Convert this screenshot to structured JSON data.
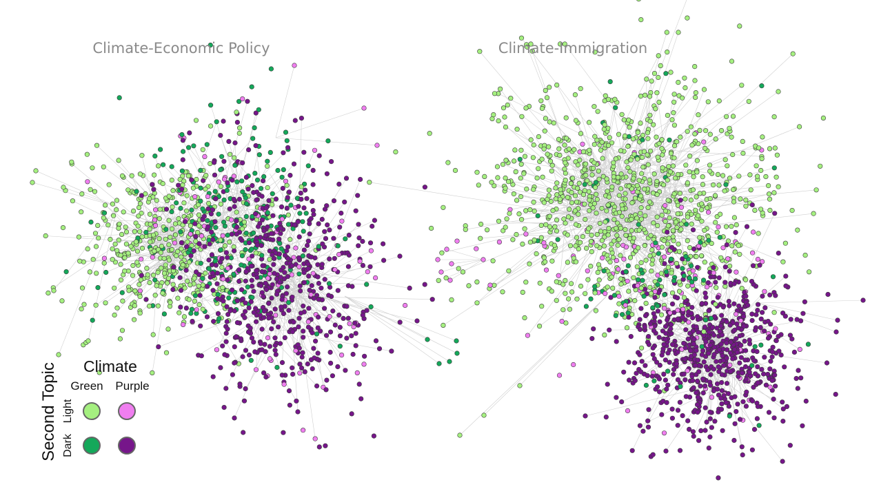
{
  "panels": [
    {
      "id": "economic",
      "title": "Climate-Economic Policy"
    },
    {
      "id": "immigration",
      "title": "Climate-Immigration"
    }
  ],
  "legend": {
    "column_title": "Climate",
    "columns": [
      "Green",
      "Purple"
    ],
    "row_title": "Second Topic",
    "rows": [
      "Light",
      "Dark"
    ],
    "swatches": [
      {
        "climate": "Green",
        "second_topic": "Light",
        "color": "#a5f080"
      },
      {
        "climate": "Purple",
        "second_topic": "Light",
        "color": "#f07ef0"
      },
      {
        "climate": "Green",
        "second_topic": "Dark",
        "color": "#14a85a"
      },
      {
        "climate": "Purple",
        "second_topic": "Dark",
        "color": "#76168a"
      }
    ]
  },
  "colors": {
    "light_green": "#a5f080",
    "light_purple": "#f07ef0",
    "dark_green": "#14a85a",
    "dark_purple": "#76168a",
    "edge": "#cfcfcf",
    "title": "#8a8a8a"
  }
}
